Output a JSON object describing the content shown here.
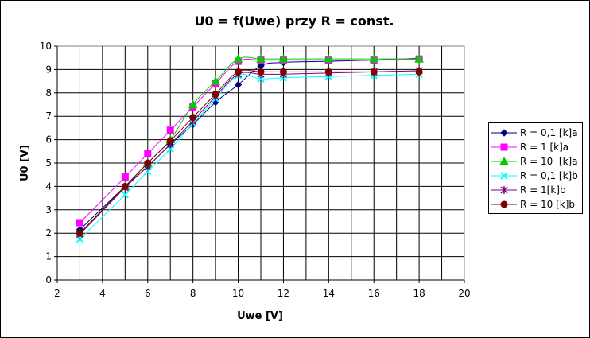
{
  "chart_data": {
    "type": "line",
    "title": "U0 = f(Uwe) przy R = const.",
    "xlabel": "Uwe [V]",
    "ylabel": "U0 [V]",
    "xlim": [
      2,
      20
    ],
    "ylim": [
      0,
      10
    ],
    "xticks": [
      "2",
      "4",
      "6",
      "8",
      "10",
      "12",
      "14",
      "16",
      "18",
      "20"
    ],
    "yticks": [
      "0",
      "1",
      "2",
      "3",
      "4",
      "5",
      "6",
      "7",
      "8",
      "9",
      "10"
    ],
    "grid": true,
    "legend_position": "right",
    "series": [
      {
        "name": "R = 0,1 [k]a",
        "color": "#000080",
        "marker": "diamond",
        "x": [
          3,
          5,
          6,
          7,
          8,
          9,
          10,
          11,
          12,
          14,
          16,
          18
        ],
        "y": [
          2.15,
          4.0,
          4.85,
          5.8,
          6.65,
          7.6,
          8.35,
          9.15,
          9.3,
          9.35,
          9.4,
          9.48
        ]
      },
      {
        "name": "R = 1 [k]a",
        "color": "#FF00FF",
        "marker": "square",
        "x": [
          3,
          5,
          6,
          7,
          8,
          9,
          10,
          11,
          12,
          14,
          16,
          18
        ],
        "y": [
          2.45,
          4.4,
          5.4,
          6.4,
          7.4,
          8.4,
          9.35,
          9.4,
          9.4,
          9.4,
          9.4,
          9.45
        ]
      },
      {
        "name": "R = 10  [k]a",
        "color": "#00CC00",
        "marker": "triangle",
        "x": [
          3,
          5,
          6,
          7,
          8,
          9,
          10,
          11,
          12,
          14,
          16,
          18
        ],
        "y": [
          2.0,
          4.0,
          5.0,
          6.0,
          7.5,
          8.5,
          9.45,
          9.45,
          9.45,
          9.45,
          9.45,
          9.45
        ]
      },
      {
        "name": "R = 0,1 [k]b",
        "color": "#00FFFF",
        "marker": "x",
        "x": [
          3,
          5,
          6,
          7,
          8,
          9,
          10,
          11,
          12,
          14,
          16,
          18
        ],
        "y": [
          1.75,
          3.65,
          4.65,
          5.6,
          6.7,
          7.75,
          8.75,
          8.6,
          8.65,
          8.7,
          8.75,
          8.8
        ]
      },
      {
        "name": "R = 1[k]b",
        "color": "#800080",
        "marker": "star",
        "x": [
          3,
          5,
          6,
          7,
          8,
          9,
          10,
          11,
          12,
          14,
          16,
          18
        ],
        "y": [
          1.95,
          3.95,
          4.85,
          5.8,
          6.8,
          7.85,
          8.8,
          8.8,
          8.8,
          8.85,
          8.9,
          8.95
        ]
      },
      {
        "name": "R = 10 [k]b",
        "color": "#800000",
        "marker": "circle",
        "x": [
          3,
          5,
          6,
          7,
          8,
          9,
          10,
          11,
          12,
          14,
          16,
          18
        ],
        "y": [
          2.0,
          4.0,
          5.0,
          5.95,
          6.95,
          7.95,
          8.9,
          8.9,
          8.9,
          8.9,
          8.9,
          8.9
        ]
      }
    ]
  }
}
